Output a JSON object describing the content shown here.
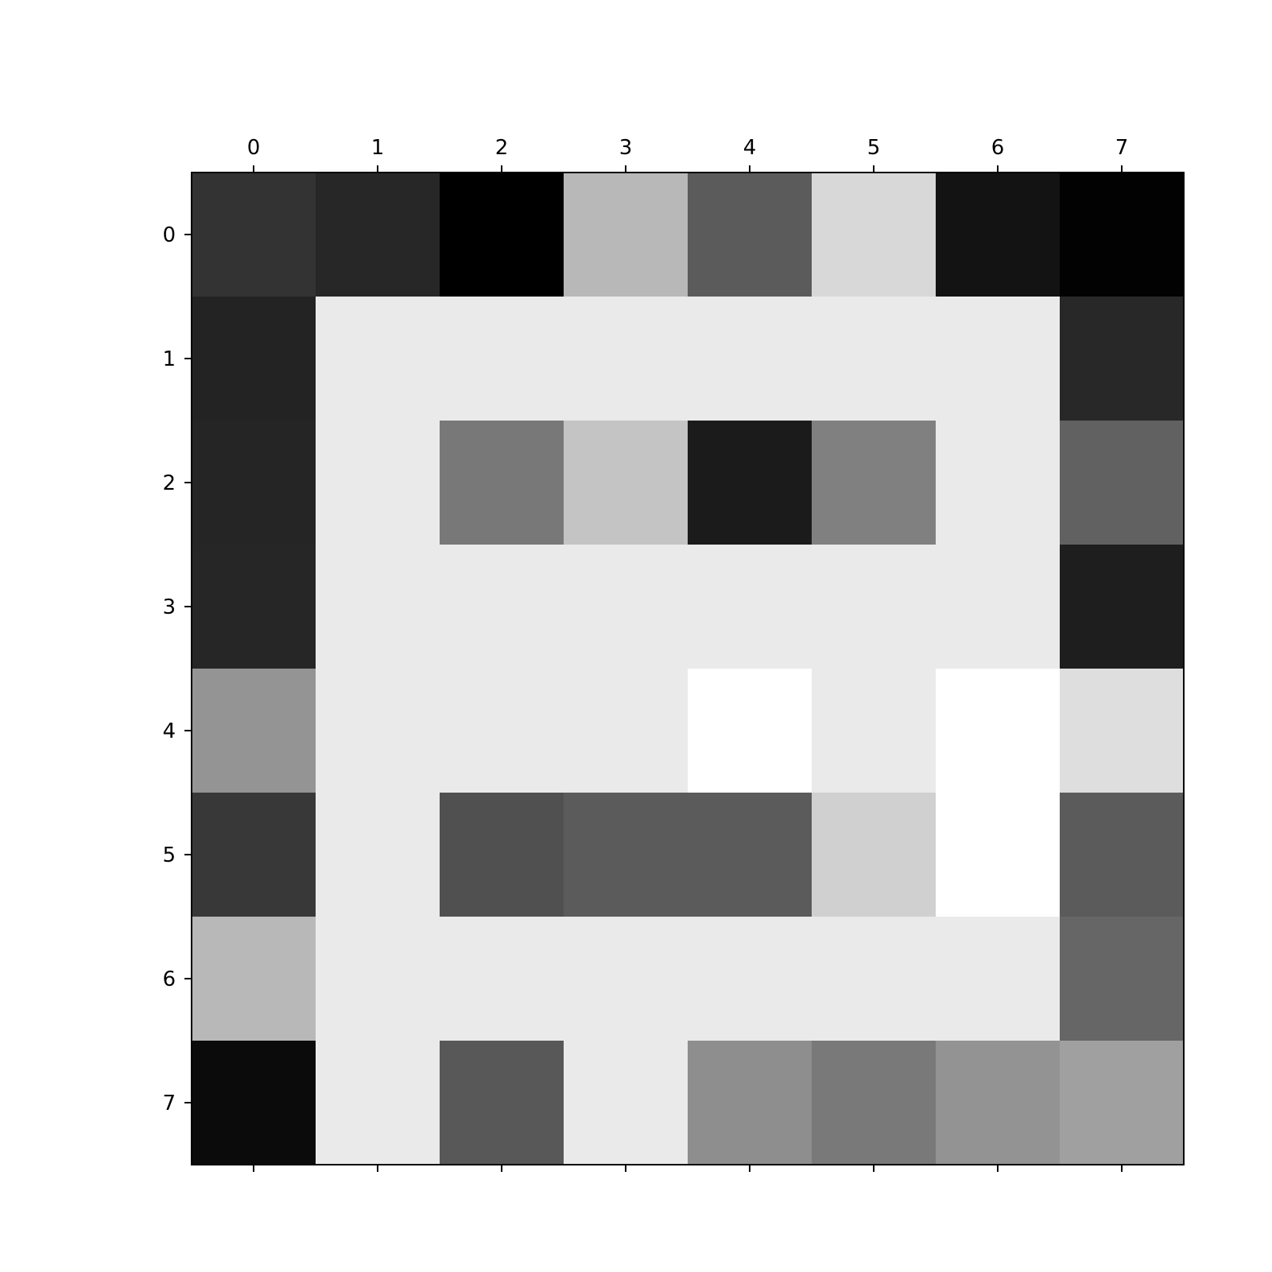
{
  "chart_data": {
    "type": "heatmap",
    "colormap": "grayscale",
    "x_tick_labels": [
      "0",
      "1",
      "2",
      "3",
      "4",
      "5",
      "6",
      "7"
    ],
    "y_tick_labels": [
      "0",
      "1",
      "2",
      "3",
      "4",
      "5",
      "6",
      "7"
    ],
    "x_ticks_position": "top",
    "grid": false,
    "legend": "none",
    "cell_gray_levels": [
      [
        51,
        39,
        0,
        184,
        91,
        216,
        19,
        2
      ],
      [
        35,
        234,
        234,
        234,
        234,
        234,
        234,
        40
      ],
      [
        37,
        234,
        120,
        196,
        27,
        128,
        234,
        97
      ],
      [
        38,
        234,
        234,
        234,
        234,
        234,
        234,
        30
      ],
      [
        148,
        234,
        234,
        234,
        255,
        234,
        255,
        222
      ],
      [
        56,
        234,
        80,
        91,
        91,
        208,
        255,
        91
      ],
      [
        184,
        234,
        234,
        234,
        234,
        234,
        234,
        102
      ],
      [
        11,
        234,
        88,
        234,
        142,
        121,
        147,
        160
      ]
    ]
  }
}
